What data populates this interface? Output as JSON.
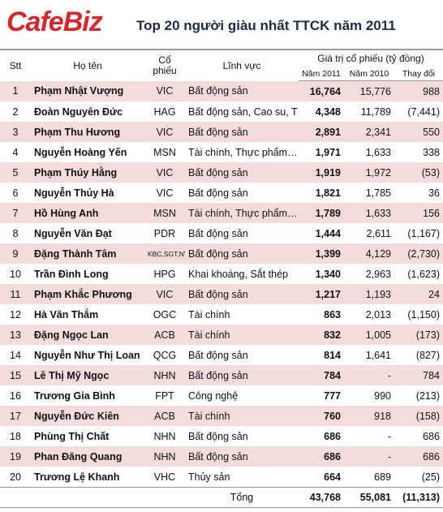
{
  "header": {
    "logo": "CafeBiz",
    "title": "Top 20 người giàu nhất TTCK năm 2011"
  },
  "table": {
    "columns": [
      "Stt",
      "Họ tên",
      "Cổ phiếu",
      "Lĩnh vực"
    ],
    "group_header": "Giá trị cổ phiếu (tỷ đồng)",
    "subcolumns": [
      "Năm 2011",
      "Năm 2010",
      "Thay đổi"
    ],
    "rows": [
      [
        "1",
        "Phạm Nhật Vượng",
        "VIC",
        "Bất động sản",
        "16,764",
        "15,776",
        "988"
      ],
      [
        "2",
        "Đoàn Nguyên Đức",
        "HAG",
        "Bất động sản, Cao su, T",
        "4,348",
        "11,789",
        "(7,441)"
      ],
      [
        "3",
        "Phạm Thu Hương",
        "VIC",
        "Bất động sản",
        "2,891",
        "2,341",
        "550"
      ],
      [
        "4",
        "Nguyễn Hoàng Yến",
        "MSN",
        "Tài chính, Thực phẩm…",
        "1,971",
        "1,633",
        "338"
      ],
      [
        "5",
        "Phạm Thúy Hằng",
        "VIC",
        "Bất động sản",
        "1,919",
        "1,972",
        "(53)"
      ],
      [
        "6",
        "Nguyễn Thủy Hà",
        "VIC",
        "Bất động sản",
        "1,821",
        "1,785",
        "36"
      ],
      [
        "7",
        "Hồ Hùng Anh",
        "MSN",
        "Tài chính, Thực phẩm…",
        "1,789",
        "1,633",
        "156"
      ],
      [
        "8",
        "Nguyễn Văn Đạt",
        "PDR",
        "Bất động sản",
        "1,444",
        "2,611",
        "(1,167)"
      ],
      [
        "9",
        "Đặng Thành Tâm",
        "KBC,SGT,NVB,ITA",
        "Bất động sản",
        "1,399",
        "4,129",
        "(2,730)"
      ],
      [
        "10",
        "Trần Đình Long",
        "HPG",
        "Khai khoáng, Sắt thép",
        "1,340",
        "2,963",
        "(1,623)"
      ],
      [
        "11",
        "Phạm Khắc Phương",
        "VIC",
        "Bất động sản",
        "1,217",
        "1,193",
        "24"
      ],
      [
        "12",
        "Hà Văn Thắm",
        "OGC",
        "Tài chính",
        "863",
        "2,013",
        "(1,150)"
      ],
      [
        "13",
        "Đặng Ngọc Lan",
        "ACB",
        "Tài chính",
        "832",
        "1,005",
        "(173)"
      ],
      [
        "14",
        "Nguyễn Như Thị Loan",
        "QCG",
        "Bất động sản",
        "814",
        "1,641",
        "(827)"
      ],
      [
        "15",
        "Lê Thị Mỹ Ngọc",
        "NHN",
        "Bất động sản",
        "784",
        "-",
        "784"
      ],
      [
        "16",
        "Trương Gia Bình",
        "FPT",
        "Công nghệ",
        "777",
        "990",
        "(213)"
      ],
      [
        "17",
        "Nguyễn Đức Kiên",
        "ACB",
        "Tài chính",
        "760",
        "918",
        "(158)"
      ],
      [
        "18",
        "Phùng Thị Chất",
        "NHN",
        "Bất động sản",
        "686",
        "-",
        "686"
      ],
      [
        "19",
        "Phan Đăng Quang",
        "NHN",
        "Bất động sản",
        "686",
        "-",
        "686"
      ],
      [
        "20",
        "Trương Lệ Khanh",
        "VHC",
        "Thủy sản",
        "664",
        "689",
        "(25)"
      ]
    ],
    "total": {
      "label": "Tổng",
      "values": [
        "43,768",
        "55,081",
        "(11,313)"
      ]
    }
  }
}
